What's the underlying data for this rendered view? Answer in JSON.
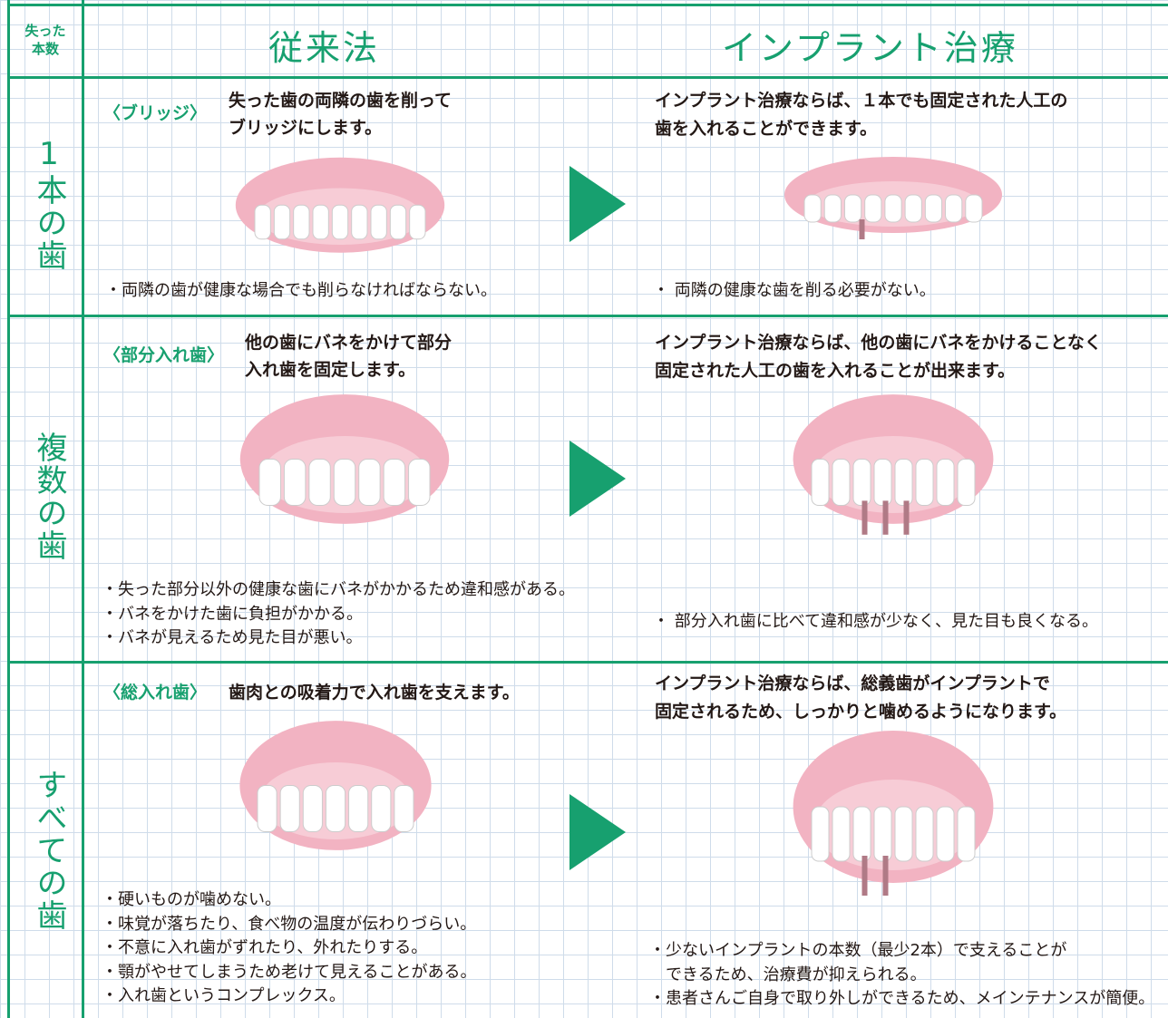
{
  "header": {
    "lost_count": [
      "失った",
      "本数"
    ],
    "conventional": "従来法",
    "implant": "インプラント治療"
  },
  "rows": [
    {
      "label": "1本の歯",
      "conventional": {
        "tag": "〈ブリッジ〉",
        "description": [
          "失った歯の両隣の歯を削って",
          "ブリッジにします。"
        ],
        "notes": [
          "・両隣の歯が健康な場合でも削らなければならない。"
        ]
      },
      "implant": {
        "description": [
          "インプラント治療ならば、１本でも固定された人工の",
          "歯を入れることができます。"
        ],
        "notes": [
          "・ 両隣の健康な歯を削る必要がない。"
        ]
      }
    },
    {
      "label": "複数の歯",
      "conventional": {
        "tag": "〈部分入れ歯〉",
        "description": [
          "他の歯にバネをかけて部分",
          "入れ歯を固定します。"
        ],
        "notes": [
          "・失った部分以外の健康な歯にバネがかかるため違和感がある。",
          "・バネをかけた歯に負担がかかる。",
          "・バネが見えるため見た目が悪い。"
        ]
      },
      "implant": {
        "description": [
          "インプラント治療ならば、他の歯にバネをかけることなく",
          "固定された人工の歯を入れることが出来ます。"
        ],
        "notes": [
          "・ 部分入れ歯に比べて違和感が少なく、見た目も良くなる。"
        ]
      }
    },
    {
      "label": "すべての歯",
      "conventional": {
        "tag": "〈総入れ歯〉",
        "description": [
          "歯肉との吸着力で入れ歯を支えます。"
        ],
        "notes": [
          "・硬いものが噛めない。",
          "・味覚が落ちたり、食べ物の温度が伝わりづらい。",
          "・不意に入れ歯がずれたり、外れたりする。",
          "・顎がやせてしまうため老けて見えることがある。",
          "・入れ歯というコンプレックス。"
        ]
      },
      "implant": {
        "description": [
          "インプラント治療ならば、総義歯がインプラントで",
          "固定されるため、しっかりと噛めるようになります。"
        ],
        "notes": [
          "・少ないインプラントの本数（最少2本）で支えることが",
          "　できるため、治療費が抑えられる。",
          "・患者さんご自身で取り外しができるため、メインテナンスが簡便。"
        ]
      }
    }
  ]
}
